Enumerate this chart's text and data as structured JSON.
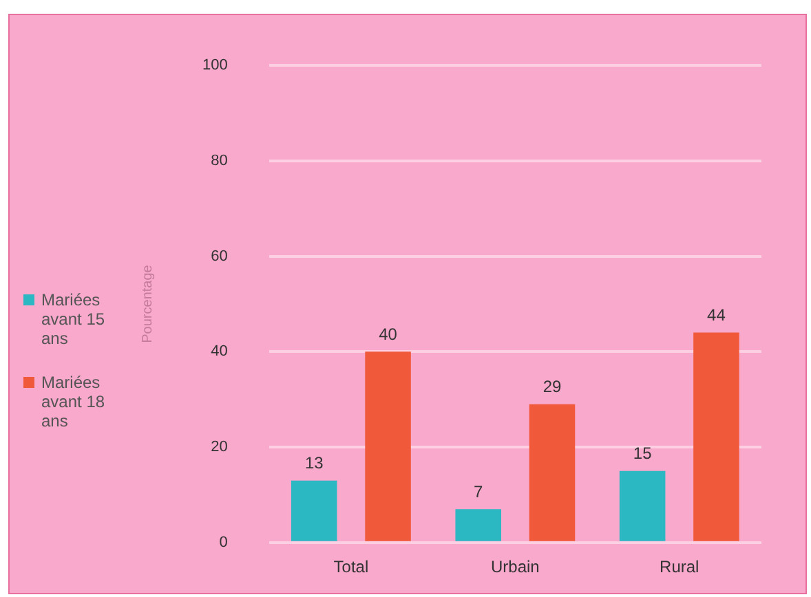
{
  "chart_data": {
    "type": "bar",
    "ylabel": "Pourcentage",
    "categories": [
      "Total",
      "Urbain",
      "Rural"
    ],
    "series": [
      {
        "name": "Mariées avant 15 ans",
        "color": "#2bb8c2",
        "values": [
          13,
          7,
          15
        ]
      },
      {
        "name": "Mariées avant 18 ans",
        "color": "#f05a3a",
        "values": [
          40,
          29,
          44
        ]
      }
    ],
    "ylim": [
      0,
      100
    ],
    "yticks": [
      0,
      20,
      40,
      60,
      80,
      100
    ],
    "grid": "y",
    "legend": "left",
    "data_labels": true
  }
}
